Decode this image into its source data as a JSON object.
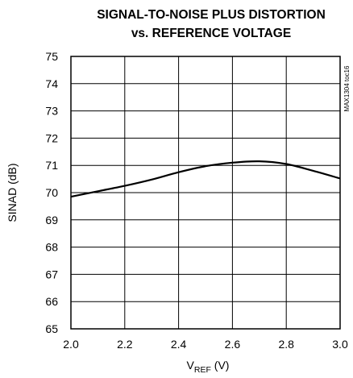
{
  "chart_data": {
    "type": "line",
    "title_line1": "SIGNAL-TO-NOISE PLUS DISTORTION",
    "title_line2": "vs. REFERENCE VOLTAGE",
    "xlabel_main": "V",
    "xlabel_sub": "REF",
    "xlabel_unit": " (V)",
    "ylabel": "SINAD (dB)",
    "side_note": "MAX1304 toc16",
    "xlim": [
      2.0,
      3.0
    ],
    "ylim": [
      65,
      75
    ],
    "x_ticks": [
      "2.0",
      "2.2",
      "2.4",
      "2.6",
      "2.8",
      "3.0"
    ],
    "y_ticks": [
      "65",
      "66",
      "67",
      "68",
      "69",
      "70",
      "71",
      "72",
      "73",
      "74",
      "75"
    ],
    "grid": true,
    "series": [
      {
        "x": [
          2.0,
          2.1,
          2.2,
          2.3,
          2.4,
          2.5,
          2.6,
          2.7,
          2.8,
          2.9,
          3.0
        ],
        "y": [
          69.85,
          70.05,
          70.25,
          70.48,
          70.75,
          70.97,
          71.1,
          71.15,
          71.05,
          70.8,
          70.52
        ]
      }
    ]
  }
}
